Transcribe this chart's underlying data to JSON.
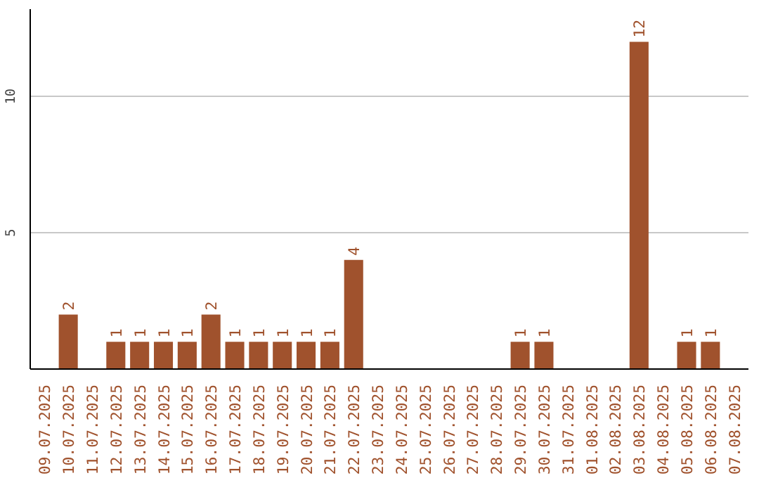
{
  "chart_data": {
    "type": "bar",
    "categories": [
      "09.07.2025",
      "10.07.2025",
      "11.07.2025",
      "12.07.2025",
      "13.07.2025",
      "14.07.2025",
      "15.07.2025",
      "16.07.2025",
      "17.07.2025",
      "18.07.2025",
      "19.07.2025",
      "20.07.2025",
      "21.07.2025",
      "22.07.2025",
      "23.07.2025",
      "24.07.2025",
      "25.07.2025",
      "26.07.2025",
      "27.07.2025",
      "28.07.2025",
      "29.07.2025",
      "30.07.2025",
      "31.07.2025",
      "01.08.2025",
      "02.08.2025",
      "03.08.2025",
      "04.08.2025",
      "05.08.2025",
      "06.08.2025",
      "07.08.2025"
    ],
    "values": [
      0,
      2,
      0,
      1,
      1,
      1,
      1,
      2,
      1,
      1,
      1,
      1,
      1,
      4,
      0,
      0,
      0,
      0,
      0,
      0,
      1,
      1,
      0,
      0,
      0,
      12,
      0,
      1,
      1,
      0
    ],
    "value_labels": [
      null,
      "2",
      null,
      "1",
      "1",
      "1",
      "1",
      "2",
      "1",
      "1",
      "1",
      "1",
      "1",
      "4",
      null,
      null,
      null,
      null,
      null,
      null,
      "1",
      "1",
      null,
      null,
      null,
      "12",
      null,
      "1",
      "1",
      null
    ],
    "color": "#a0522d",
    "ylim": [
      0,
      13.2
    ],
    "yticks": [
      5,
      10
    ],
    "grid": "y"
  }
}
